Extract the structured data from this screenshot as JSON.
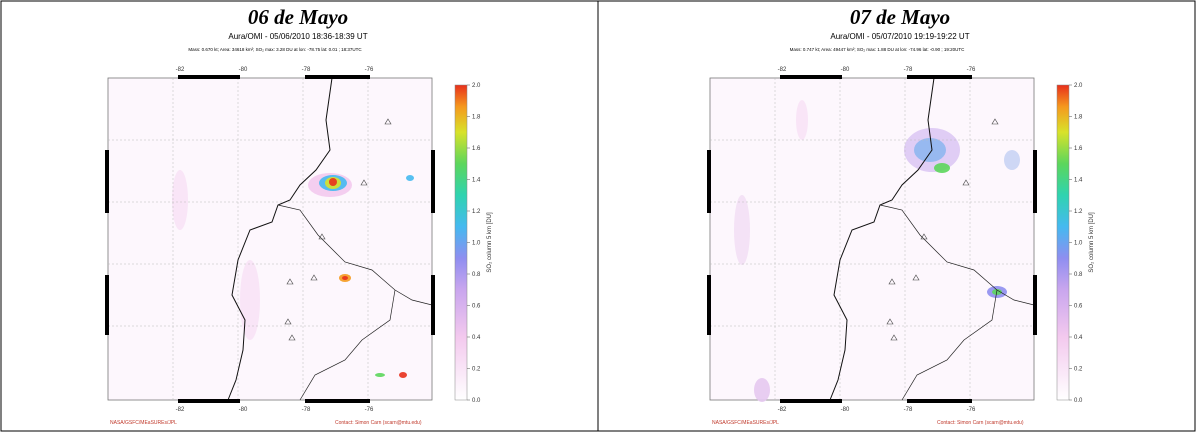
{
  "panels": [
    {
      "title": "06 de Mayo",
      "subtitle": "Aura/OMI - 05/06/2010 18:36-18:39 UT",
      "info": "Mass: 0.670 kt; Area: 34618 km²; SO₂ max: 3.28 DU at lon: -78.75 lat: 0.01 ; 18:37UTC",
      "lon_labels": [
        "-82",
        "-80",
        "-78",
        "-76"
      ],
      "colorbar_ticks": [
        "0.0",
        "0.2",
        "0.4",
        "0.6",
        "0.8",
        "1.0",
        "1.2",
        "1.4",
        "1.6",
        "1.8",
        "2.0"
      ],
      "colorbar_label": "SO₂ column 5 km [DU]",
      "footer_left": "NASA/GSFC/MEaSUREs/JPL",
      "footer_right": "Contact: Simon Carn (scarn@mtu.edu)"
    },
    {
      "title": "07 de Mayo",
      "subtitle": "Aura/OMI - 05/07/2010 19:19-19:22 UT",
      "info": "Mass: 0.747 kt; Area: 49447 km²; SO₂ max: 1.88 DU at lon: -74.96 lat: -0.90 ; 19:20UTC",
      "lon_labels": [
        "-82",
        "-80",
        "-78",
        "-76"
      ],
      "colorbar_ticks": [
        "0.0",
        "0.2",
        "0.4",
        "0.6",
        "0.8",
        "1.0",
        "1.2",
        "1.4",
        "1.6",
        "1.8",
        "2.0"
      ],
      "colorbar_label": "SO₂ column 5 km [DU]",
      "footer_left": "NASA/GSFC/MEaSUREs/JPL",
      "footer_right": "Contact: Simon Carn (scarn@mtu.edu)"
    }
  ]
}
